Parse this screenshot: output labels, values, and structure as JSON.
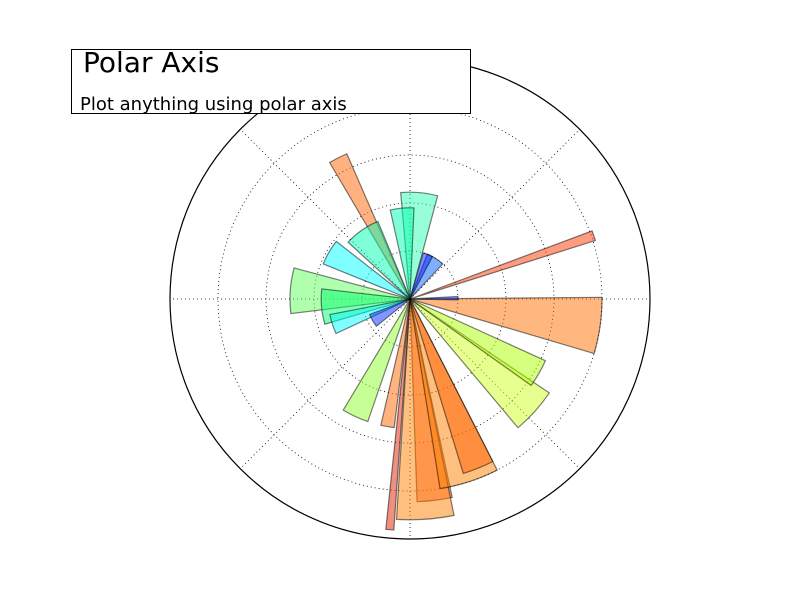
{
  "header": {
    "title": "Polar Axis",
    "subtitle": "Plot anything using polar axis"
  },
  "chart_data": {
    "type": "polar-bar",
    "title": "Polar Axis",
    "subtitle": "Plot anything using polar axis",
    "r_max": 10,
    "r_grid": [
      2,
      4,
      6,
      8
    ],
    "theta_grid_deg": [
      0,
      45,
      90,
      135,
      180,
      225,
      270,
      315
    ],
    "grid": true,
    "grid_style": "dotted",
    "theta_direction": "counterclockwise",
    "theta_zero": "east",
    "bar_alpha": 0.5,
    "colormap": "jet",
    "bars": [
      {
        "theta_deg": -83,
        "width_deg": 10,
        "r": 8.45,
        "color": "#ff5a28"
      },
      {
        "theta_deg": -86,
        "width_deg": 15,
        "r": 9.2,
        "color": "#ff7f00"
      },
      {
        "theta_deg": -95,
        "width_deg": 2,
        "r": 9.65,
        "color": "#e02000"
      },
      {
        "theta_deg": -72,
        "width_deg": 18,
        "r": 8.0,
        "color": "#ff8000"
      },
      {
        "theta_deg": -68,
        "width_deg": 10,
        "r": 7.6,
        "color": "#ff6000"
      },
      {
        "theta_deg": -100,
        "width_deg": 6,
        "r": 5.4,
        "color": "#ff6a00"
      },
      {
        "theta_deg": -115,
        "width_deg": 12,
        "r": 5.4,
        "color": "#90ff30"
      },
      {
        "theta_deg": -42,
        "width_deg": 16,
        "r": 7.0,
        "color": "#d0ff20"
      },
      {
        "theta_deg": -30,
        "width_deg": 11,
        "r": 6.2,
        "color": "#b0ff00"
      },
      {
        "theta_deg": -8,
        "width_deg": 17,
        "r": 8.0,
        "color": "#ff7000"
      },
      {
        "theta_deg": 1,
        "width_deg": 4,
        "r": 2.0,
        "color": "#0030ff"
      },
      {
        "theta_deg": 19,
        "width_deg": 3,
        "r": 8.1,
        "color": "#ff3800"
      },
      {
        "theta_deg": 58,
        "width_deg": 22,
        "r": 2.0,
        "color": "#0060ff"
      },
      {
        "theta_deg": 68,
        "width_deg": 12,
        "r": 2.0,
        "color": "#0020ff"
      },
      {
        "theta_deg": 85,
        "width_deg": 20,
        "r": 4.45,
        "color": "#30ffb0"
      },
      {
        "theta_deg": 95,
        "width_deg": 15,
        "r": 3.8,
        "color": "#00ffb0"
      },
      {
        "theta_deg": 117,
        "width_deg": 7,
        "r": 6.6,
        "color": "#ff6400"
      },
      {
        "theta_deg": 125,
        "width_deg": 25,
        "r": 3.5,
        "color": "#00ffb0"
      },
      {
        "theta_deg": 150,
        "width_deg": 16,
        "r": 3.9,
        "color": "#00ffff"
      },
      {
        "theta_deg": 176,
        "width_deg": 22,
        "r": 5.0,
        "color": "#60ff60"
      },
      {
        "theta_deg": 185,
        "width_deg": 23,
        "r": 3.7,
        "color": "#00ff70"
      },
      {
        "theta_deg": 198,
        "width_deg": 14,
        "r": 3.4,
        "color": "#00ffff"
      },
      {
        "theta_deg": 210,
        "width_deg": 18,
        "r": 1.8,
        "color": "#0030ff"
      }
    ]
  }
}
